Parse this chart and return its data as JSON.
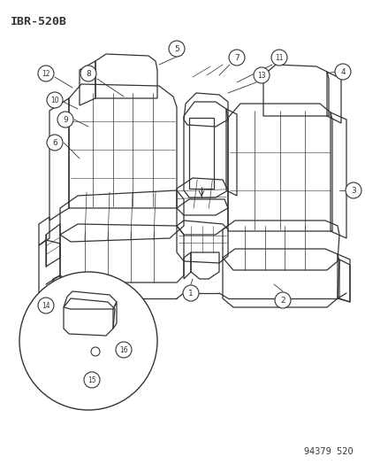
{
  "title": "IBR-520B",
  "footer": "94379  520",
  "bg_color": "#ffffff",
  "line_color": "#333333",
  "fig_width": 4.14,
  "fig_height": 5.33,
  "dpi": 100
}
